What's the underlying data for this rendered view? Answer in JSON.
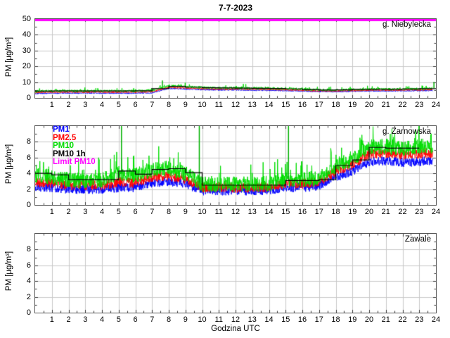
{
  "title": "7-7-2023",
  "xlabel": "Godzina UTC",
  "ylabel": "PM [µg/m³]",
  "colors": {
    "pm1": "#0000ff",
    "pm2_5": "#ff0000",
    "pm10": "#00dd00",
    "pm10_1h": "#000000",
    "limit_pm10": "#ff00ff",
    "grid": "#c8c8c8",
    "axis": "#555555"
  },
  "legend": [
    {
      "label": "PM1",
      "color": "#0000ff"
    },
    {
      "label": "PM2.5",
      "color": "#ff0000"
    },
    {
      "label": "PM10",
      "color": "#00dd00"
    },
    {
      "label": "PM10 1h",
      "color": "#000000"
    },
    {
      "label": "Limit PM10",
      "color": "#ff00ff"
    }
  ],
  "axis": {
    "xlim": [
      0,
      24
    ],
    "xticks": [
      1,
      2,
      3,
      4,
      5,
      6,
      7,
      8,
      9,
      10,
      11,
      12,
      13,
      14,
      15,
      16,
      17,
      18,
      19,
      20,
      21,
      22,
      23,
      24
    ],
    "minor_x": 0.5
  },
  "chart_data": [
    {
      "station": "g. Niebylecka",
      "type": "line",
      "ylim": [
        0,
        50
      ],
      "yticks": [
        0,
        10,
        20,
        30,
        40,
        50
      ],
      "minor_y": 5,
      "limit_pm10": 50,
      "data_end_hour": 23.8,
      "series": [
        {
          "name": "PM1",
          "color": "#0000ff",
          "noise": 0.4,
          "noise_up": 0,
          "hourly": [
            2.8,
            3.0,
            3.0,
            3.0,
            3.0,
            3.0,
            3.0,
            3.2,
            6.0,
            5.6,
            5.2,
            5.0,
            5.0,
            4.9,
            4.8,
            4.6,
            4.3,
            4.0,
            3.9,
            4.2,
            4.4,
            4.4,
            4.5,
            4.5,
            4.8
          ]
        },
        {
          "name": "PM2.5",
          "color": "#ff0000",
          "noise": 0.4,
          "noise_up": 0,
          "hourly": [
            3.4,
            3.6,
            3.6,
            3.6,
            3.6,
            3.6,
            3.6,
            3.9,
            6.6,
            6.2,
            5.8,
            5.5,
            5.5,
            5.4,
            5.3,
            5.1,
            4.8,
            4.4,
            4.3,
            4.6,
            4.8,
            4.8,
            4.9,
            5.0,
            5.3
          ]
        },
        {
          "name": "PM10",
          "color": "#00dd00",
          "noise": 0.75,
          "noise_up": 1.0,
          "hourly": [
            4.2,
            4.4,
            4.4,
            4.4,
            4.4,
            4.4,
            4.4,
            4.8,
            7.6,
            7.1,
            6.6,
            6.3,
            6.3,
            6.2,
            6.1,
            5.9,
            5.5,
            5.1,
            5.0,
            5.3,
            5.5,
            5.5,
            5.6,
            5.7,
            6.2
          ]
        }
      ],
      "pm10_1h_steps": [
        4.3,
        4.4,
        4.4,
        4.4,
        4.4,
        4.4,
        4.5,
        5.9,
        7.3,
        6.8,
        6.4,
        6.3,
        6.2,
        6.1,
        6.0,
        5.7,
        5.3,
        5.0,
        5.1,
        5.4,
        5.5,
        5.5,
        5.6,
        5.9
      ],
      "spikes": [
        {
          "hour": 7.62,
          "value": 11
        },
        {
          "hour": 23.88,
          "value": 10
        }
      ]
    },
    {
      "station": "g. Zarnowska",
      "type": "line",
      "ylim": [
        0,
        10
      ],
      "yticks": [
        0,
        2,
        4,
        6,
        8
      ],
      "minor_y": 1,
      "limit_pm10": 50,
      "data_end_hour": 23.8,
      "series": [
        {
          "name": "PM1",
          "color": "#0000ff",
          "noise": 0.6,
          "noise_up": 0,
          "hourly": [
            2.3,
            2.2,
            2.0,
            2.0,
            2.0,
            2.2,
            2.2,
            2.8,
            3.0,
            2.7,
            1.8,
            1.8,
            1.8,
            1.8,
            1.9,
            2.2,
            2.2,
            2.4,
            3.5,
            4.3,
            5.5,
            5.6,
            5.4,
            5.5,
            5.6
          ]
        },
        {
          "name": "PM2.5",
          "color": "#ff0000",
          "noise": 0.65,
          "noise_up": 0,
          "hourly": [
            2.9,
            2.8,
            2.5,
            2.5,
            2.5,
            2.9,
            2.8,
            3.5,
            3.7,
            3.3,
            2.2,
            2.2,
            2.2,
            2.2,
            2.3,
            2.7,
            2.7,
            2.9,
            4.3,
            5.1,
            6.5,
            6.6,
            6.4,
            6.5,
            6.6
          ]
        },
        {
          "name": "PM10",
          "color": "#00dd00",
          "noise": 1.0,
          "noise_up": 1.2,
          "hourly": [
            3.8,
            3.6,
            3.1,
            3.1,
            3.1,
            4.0,
            3.8,
            4.4,
            4.6,
            4.0,
            2.6,
            2.6,
            2.6,
            2.6,
            2.7,
            3.2,
            3.2,
            3.4,
            5.0,
            5.8,
            7.4,
            7.4,
            7.2,
            7.4,
            7.5
          ]
        }
      ],
      "pm10_1h_steps": [
        4.0,
        3.8,
        3.2,
        3.2,
        3.2,
        4.3,
        3.9,
        4.5,
        4.6,
        4.1,
        2.5,
        2.5,
        2.5,
        2.5,
        2.5,
        3.1,
        3.1,
        3.2,
        5.0,
        5.7,
        7.3,
        7.2,
        7.2
      ],
      "spikes": [
        {
          "hour": 5.17,
          "value": 10
        },
        {
          "hour": 9.83,
          "value": 10
        },
        {
          "hour": 15.17,
          "value": 10
        }
      ]
    },
    {
      "station": "Zawale",
      "type": "line",
      "ylim": [
        0,
        10
      ],
      "yticks": [
        0,
        2,
        4,
        6,
        8
      ],
      "minor_y": 1,
      "limit_pm10": 50,
      "data_end_hour": 0,
      "series": [],
      "pm10_1h_steps": [],
      "spikes": []
    }
  ]
}
